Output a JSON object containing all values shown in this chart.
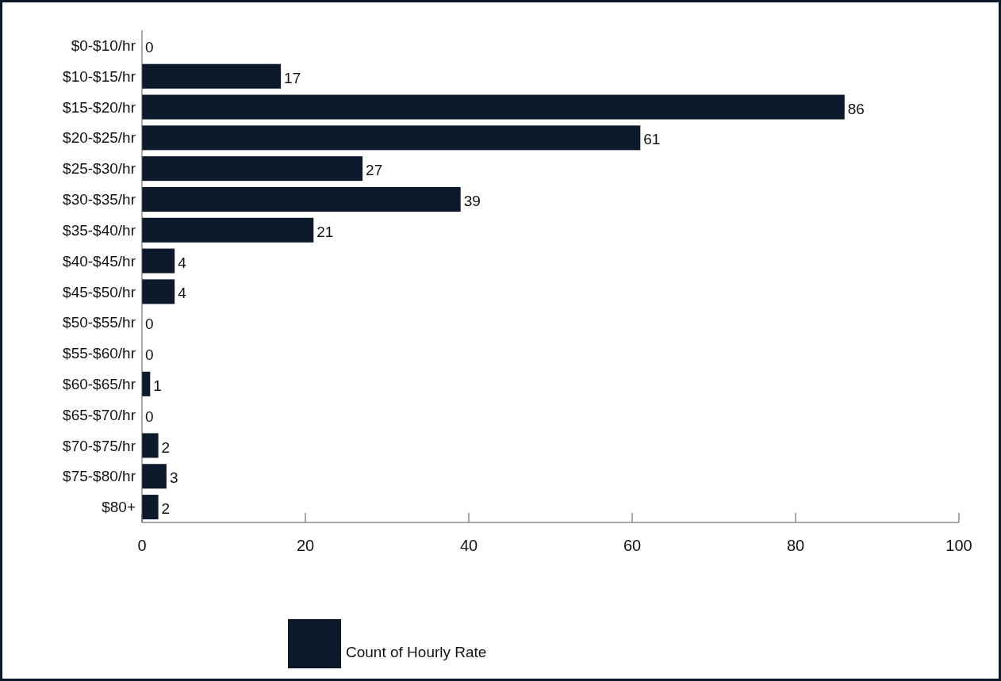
{
  "chart_data": {
    "type": "bar",
    "orientation": "horizontal",
    "categories": [
      "$0-$10/hr",
      "$10-$15/hr",
      "$15-$20/hr",
      "$20-$25/hr",
      "$25-$30/hr",
      "$30-$35/hr",
      "$35-$40/hr",
      "$40-$45/hr",
      "$45-$50/hr",
      "$50-$55/hr",
      "$55-$60/hr",
      "$60-$65/hr",
      "$65-$70/hr",
      "$70-$75/hr",
      "$75-$80/hr",
      "$80+"
    ],
    "series": [
      {
        "name": "Count of Hourly Rate",
        "color": "#0c1a2b",
        "values": [
          0,
          17,
          86,
          61,
          27,
          39,
          21,
          4,
          4,
          0,
          0,
          1,
          0,
          2,
          3,
          2
        ]
      }
    ],
    "xlim": [
      0,
      100
    ],
    "xticks": [
      0,
      20,
      40,
      60,
      80,
      100
    ],
    "data_labels": true,
    "legend": "bottom",
    "grid": false
  }
}
